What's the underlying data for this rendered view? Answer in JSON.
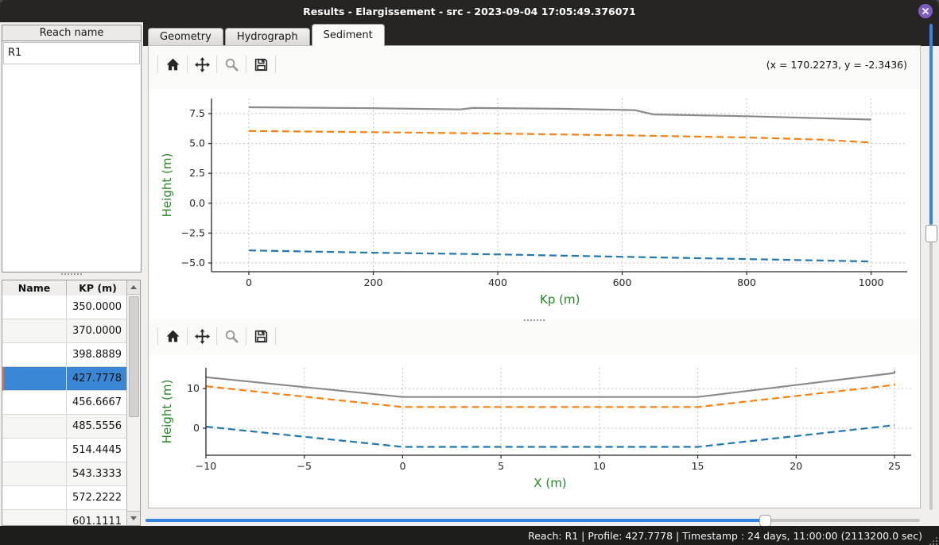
{
  "window": {
    "title": "Results - Elargissement - src - 2023-09-04 17:05:49.376071"
  },
  "sidebar": {
    "reach_header": "Reach name",
    "reaches": [
      "R1"
    ],
    "table": {
      "columns": [
        "Name",
        "KP (m)"
      ],
      "selected_kp": "427.7778",
      "rows": [
        {
          "name": "",
          "kp": "350.0000"
        },
        {
          "name": "",
          "kp": "370.0000"
        },
        {
          "name": "",
          "kp": "398.8889"
        },
        {
          "name": "",
          "kp": "427.7778"
        },
        {
          "name": "",
          "kp": "456.6667"
        },
        {
          "name": "",
          "kp": "485.5556"
        },
        {
          "name": "",
          "kp": "514.4445"
        },
        {
          "name": "",
          "kp": "543.3333"
        },
        {
          "name": "",
          "kp": "572.2222"
        },
        {
          "name": "",
          "kp": "601.1111"
        }
      ]
    }
  },
  "tabs": [
    {
      "id": "geometry",
      "label": "Geometry",
      "active": false
    },
    {
      "id": "hydrograph",
      "label": "Hydrograph",
      "active": false
    },
    {
      "id": "sediment",
      "label": "Sediment",
      "active": true
    }
  ],
  "toolbar": {
    "buttons": [
      {
        "id": "home",
        "icon": "home-icon"
      },
      {
        "id": "pan",
        "icon": "pan-arrows-icon"
      },
      {
        "id": "zoom",
        "icon": "magnifier-icon"
      },
      {
        "id": "save",
        "icon": "save-floppy-icon"
      }
    ],
    "readout": "(x = 170.2273,  y = -2.3436)"
  },
  "time_slider": {
    "fraction": 0.8
  },
  "vertical_slider": {
    "fraction": 0.42
  },
  "status_bar": {
    "text": "Reach: R1 | Profile: 427.7778 | Timestamp : 24 days, 11:00:00 (2113200.0 sec)"
  },
  "colors": {
    "accent_blue": "#3584e4",
    "selection_blue": "#3986d5",
    "series_gray": "#8a8a8a",
    "series_orange": "#ff7f0e",
    "series_blue": "#1f77b4",
    "axis_label_green": "#228b22",
    "titlebar_dark": "#262524",
    "close_button_purple": "#7e5bc0"
  },
  "chart_data": [
    {
      "type": "line",
      "title": "",
      "xlabel": "Kp (m)",
      "ylabel": "Height (m)",
      "xlim": [
        -60,
        1058
      ],
      "ylim": [
        -5.73,
        8.76
      ],
      "xticks": [
        0,
        200,
        400,
        600,
        800,
        1000
      ],
      "xtick_labels": [
        "0",
        "200",
        "400",
        "600",
        "800",
        "1000"
      ],
      "yticks": [
        7.5,
        5.0,
        2.5,
        0.0,
        -2.5,
        -5.0
      ],
      "ytick_labels": [
        "7.5",
        "5.0",
        "2.5",
        "0.0",
        "−2.5",
        "−5.0"
      ],
      "grid": true,
      "legend": false,
      "series": [
        {
          "name": "upper-line-solid-gray",
          "color": "#8a8a8a",
          "style": "solid",
          "x": [
            0,
            200,
            340,
            360,
            500,
            620,
            650,
            800,
            1000
          ],
          "y": [
            8.03,
            7.95,
            7.85,
            7.97,
            7.9,
            7.79,
            7.43,
            7.28,
            7.0
          ]
        },
        {
          "name": "middle-line-dashed-orange",
          "color": "#ff7f0e",
          "style": "dashed",
          "x": [
            0,
            200,
            400,
            600,
            800,
            920,
            1000
          ],
          "y": [
            6.05,
            5.94,
            5.83,
            5.68,
            5.5,
            5.32,
            5.08
          ]
        },
        {
          "name": "lower-line-dashed-blue",
          "color": "#1f77b4",
          "style": "dashed",
          "x": [
            0,
            200,
            400,
            600,
            800,
            1000
          ],
          "y": [
            -3.95,
            -4.14,
            -4.28,
            -4.48,
            -4.67,
            -4.87
          ]
        }
      ]
    },
    {
      "type": "line",
      "title": "",
      "xlabel": "X (m)",
      "ylabel": "Height (m)",
      "xlim": [
        -10,
        25.85
      ],
      "ylim": [
        -6.8,
        15.2
      ],
      "xticks": [
        -10,
        -5,
        0,
        5,
        10,
        15,
        20,
        25
      ],
      "xtick_labels": [
        "−10",
        "−5",
        "0",
        "5",
        "10",
        "15",
        "20",
        "25"
      ],
      "yticks": [
        10,
        0
      ],
      "ytick_labels": [
        "10",
        "0"
      ],
      "grid": true,
      "legend": false,
      "series": [
        {
          "name": "cross-section-top-solid-gray",
          "color": "#8a8a8a",
          "style": "solid",
          "x": [
            -10,
            0,
            15,
            25,
            25
          ],
          "y": [
            12.85,
            7.85,
            7.85,
            13.9,
            14.5
          ]
        },
        {
          "name": "cross-section-middle-dashed-orange",
          "color": "#ff7f0e",
          "style": "dashed",
          "x": [
            -10,
            0,
            15,
            25,
            25
          ],
          "y": [
            10.55,
            5.35,
            5.35,
            10.9,
            11.25
          ]
        },
        {
          "name": "cross-section-bottom-dashed-blue",
          "color": "#1f77b4",
          "style": "dashed",
          "x": [
            -10,
            0,
            15,
            25
          ],
          "y": [
            0.4,
            -4.7,
            -4.7,
            0.75
          ]
        }
      ]
    }
  ]
}
